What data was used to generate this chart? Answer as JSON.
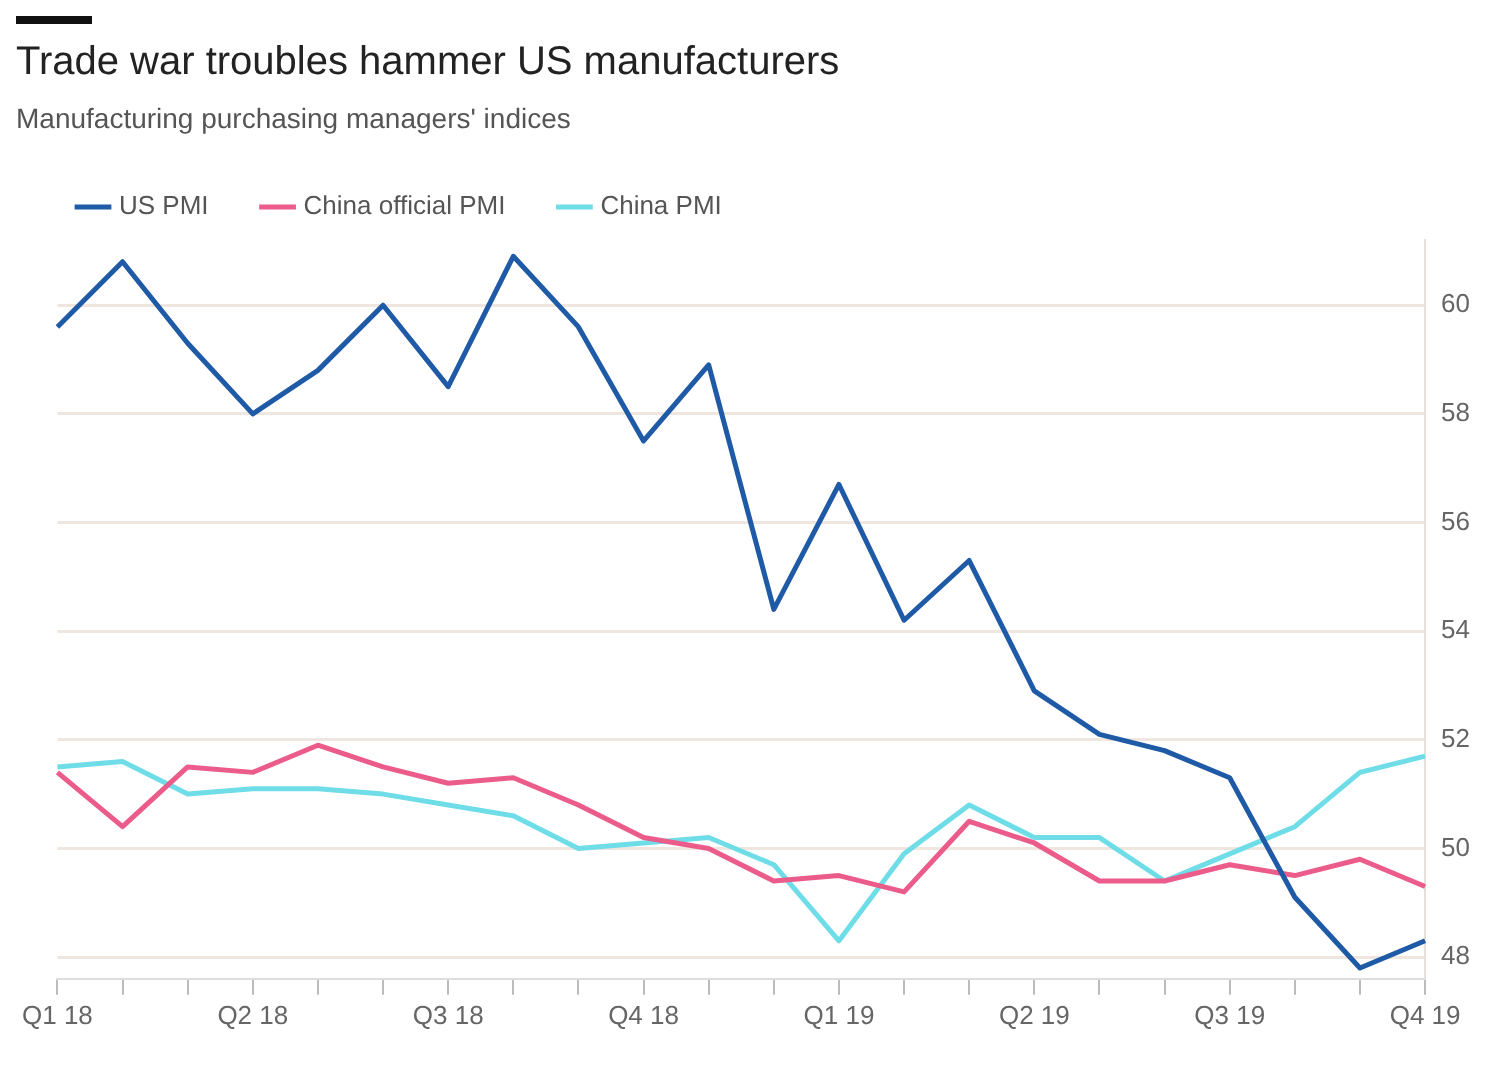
{
  "chart_data": {
    "type": "line",
    "title": "Trade war troubles hammer US manufacturers",
    "subtitle": "Manufacturing purchasing managers' indices",
    "categories": [
      "Q1 18",
      null,
      null,
      "Q2 18",
      null,
      null,
      "Q3 18",
      null,
      null,
      "Q4 18",
      null,
      null,
      "Q1 19",
      null,
      null,
      "Q2 19",
      null,
      null,
      "Q3 19",
      null,
      null,
      "Q4 19"
    ],
    "series": [
      {
        "name": "US PMI",
        "color": "#1f5aa6",
        "values": [
          59.6,
          60.8,
          59.3,
          58.0,
          58.8,
          60.0,
          58.5,
          60.9,
          59.6,
          57.5,
          58.9,
          54.4,
          56.7,
          54.2,
          55.3,
          52.9,
          52.1,
          51.8,
          51.3,
          49.1,
          47.8,
          48.3
        ]
      },
      {
        "name": "China official PMI",
        "color": "#eb5c8a",
        "values": [
          51.4,
          50.4,
          51.5,
          51.4,
          51.9,
          51.5,
          51.2,
          51.3,
          50.8,
          50.2,
          50.0,
          49.4,
          49.5,
          49.2,
          50.5,
          50.1,
          49.4,
          49.4,
          49.7,
          49.5,
          49.8,
          49.3
        ]
      },
      {
        "name": "China PMI",
        "color": "#6fdde8",
        "values": [
          51.5,
          51.6,
          51.0,
          51.1,
          51.1,
          51.0,
          50.8,
          50.6,
          50.0,
          50.1,
          50.2,
          49.7,
          48.3,
          49.9,
          50.8,
          50.2,
          50.2,
          49.4,
          49.9,
          50.4,
          51.4,
          51.7
        ]
      }
    ],
    "ylim": [
      47.6,
      61.2
    ],
    "yticks": [
      48,
      50,
      52,
      54,
      56,
      58,
      60
    ],
    "grid": "y",
    "legend": "top left",
    "marker": "none",
    "line_style": "solid"
  }
}
